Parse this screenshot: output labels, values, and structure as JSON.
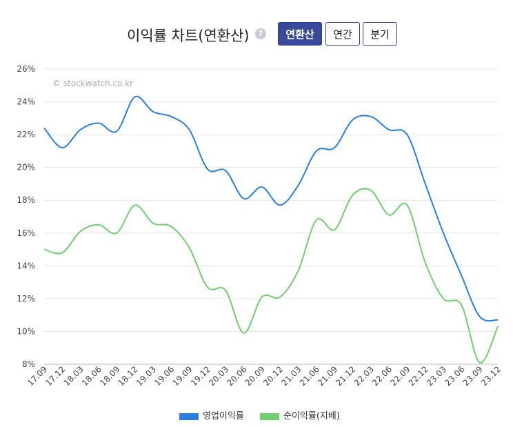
{
  "header": {
    "title": "이익률 차트(연환산)",
    "help_icon": "?",
    "buttons": [
      {
        "label": "연환산",
        "active": true
      },
      {
        "label": "연간",
        "active": false
      },
      {
        "label": "분기",
        "active": false
      }
    ]
  },
  "watermark": "© stockwatch.co.kr",
  "chart_data": {
    "type": "line",
    "title": "이익률 차트(연환산)",
    "x": [
      "17.09",
      "17.12",
      "18.03",
      "18.06",
      "18.09",
      "18.12",
      "19.03",
      "19.06",
      "19.09",
      "19.12",
      "20.03",
      "20.06",
      "20.09",
      "20.12",
      "21.03",
      "21.06",
      "21.09",
      "21.12",
      "22.03",
      "22.06",
      "22.09",
      "22.12",
      "23.03",
      "23.06",
      "23.09",
      "23.12"
    ],
    "yticks": [
      "8%",
      "10%",
      "12%",
      "14%",
      "16%",
      "18%",
      "20%",
      "22%",
      "24%",
      "26%"
    ],
    "ylim": [
      8,
      26
    ],
    "grid": true,
    "legend_position": "bottom",
    "series": [
      {
        "name": "영업이익률",
        "color": "#2a7de1",
        "values": [
          22.4,
          21.2,
          22.3,
          22.7,
          22.2,
          24.3,
          23.4,
          23.1,
          22.3,
          19.9,
          19.8,
          18.1,
          18.8,
          17.7,
          18.9,
          21.0,
          21.2,
          22.9,
          23.1,
          22.3,
          22.0,
          19.0,
          16.0,
          13.4,
          10.9,
          10.7
        ]
      },
      {
        "name": "순이익률(지배)",
        "color": "#6fce6f",
        "values": [
          15.0,
          14.8,
          16.1,
          16.5,
          16.0,
          17.7,
          16.6,
          16.4,
          15.1,
          12.7,
          12.5,
          9.9,
          12.1,
          12.1,
          13.7,
          16.8,
          16.2,
          18.3,
          18.6,
          17.1,
          17.7,
          14.2,
          12.0,
          11.6,
          8.1,
          10.3
        ]
      }
    ]
  }
}
